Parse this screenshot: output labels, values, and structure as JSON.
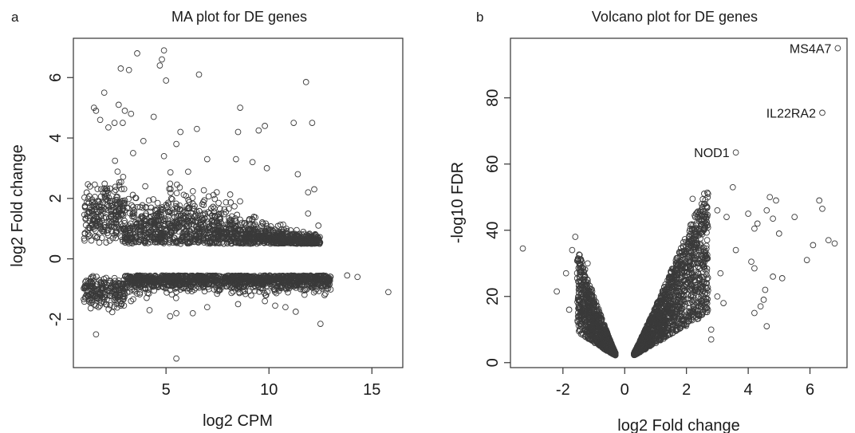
{
  "panels": [
    {
      "letter": "a",
      "title": "MA plot for DE genes",
      "xlabel": "log2 CPM",
      "ylabel": "log2 Fold change"
    },
    {
      "letter": "b",
      "title": "Volcano plot for DE genes",
      "xlabel": "log2 Fold change",
      "ylabel": "-log10 FDR"
    }
  ],
  "chart_data": [
    {
      "type": "scatter",
      "title": "MA plot for DE genes",
      "xlabel": "log2 CPM",
      "ylabel": "log2 Fold change",
      "xlim": [
        0.5,
        16.5
      ],
      "ylim": [
        -3.6,
        7.3
      ],
      "xticks": [
        5,
        10,
        15
      ],
      "yticks": [
        -2,
        0,
        2,
        4,
        6
      ],
      "grid": false,
      "marker": "open-circle",
      "outliers": [
        {
          "x": 4.9,
          "y": 6.9
        },
        {
          "x": 4.8,
          "y": 6.6
        },
        {
          "x": 4.7,
          "y": 6.4
        },
        {
          "x": 3.6,
          "y": 6.8
        },
        {
          "x": 2.8,
          "y": 6.3
        },
        {
          "x": 3.2,
          "y": 6.25
        },
        {
          "x": 5.0,
          "y": 5.9
        },
        {
          "x": 6.6,
          "y": 6.1
        },
        {
          "x": 11.8,
          "y": 5.85
        },
        {
          "x": 2.0,
          "y": 5.5
        },
        {
          "x": 1.6,
          "y": 4.9
        },
        {
          "x": 1.8,
          "y": 4.6
        },
        {
          "x": 2.2,
          "y": 4.35
        },
        {
          "x": 2.5,
          "y": 4.5
        },
        {
          "x": 2.7,
          "y": 5.1
        },
        {
          "x": 3.0,
          "y": 4.9
        },
        {
          "x": 3.3,
          "y": 4.8
        },
        {
          "x": 1.5,
          "y": 5.0
        },
        {
          "x": 2.9,
          "y": 4.5
        },
        {
          "x": 4.4,
          "y": 4.7
        },
        {
          "x": 5.7,
          "y": 4.2
        },
        {
          "x": 6.5,
          "y": 4.3
        },
        {
          "x": 8.6,
          "y": 5.0
        },
        {
          "x": 8.5,
          "y": 4.2
        },
        {
          "x": 9.5,
          "y": 4.25
        },
        {
          "x": 9.8,
          "y": 4.4
        },
        {
          "x": 11.2,
          "y": 4.5
        },
        {
          "x": 12.1,
          "y": 4.5
        },
        {
          "x": 3.4,
          "y": 3.5
        },
        {
          "x": 3.9,
          "y": 3.9
        },
        {
          "x": 4.9,
          "y": 3.4
        },
        {
          "x": 5.5,
          "y": 3.8
        },
        {
          "x": 7.0,
          "y": 3.3
        },
        {
          "x": 8.4,
          "y": 3.3
        },
        {
          "x": 9.2,
          "y": 3.2
        },
        {
          "x": 9.9,
          "y": 3.0
        },
        {
          "x": 11.4,
          "y": 2.8
        },
        {
          "x": 11.9,
          "y": 2.2
        },
        {
          "x": 12.2,
          "y": 2.3
        },
        {
          "x": 11.9,
          "y": 1.5
        },
        {
          "x": 12.4,
          "y": 1.1
        },
        {
          "x": 12.1,
          "y": 0.5
        },
        {
          "x": 11.5,
          "y": 0.7
        },
        {
          "x": 14.3,
          "y": -0.6
        },
        {
          "x": 13.8,
          "y": -0.55
        },
        {
          "x": 15.8,
          "y": -1.1
        },
        {
          "x": 12.6,
          "y": -0.9
        },
        {
          "x": 12.7,
          "y": -1.2
        },
        {
          "x": 12.3,
          "y": -1.0
        },
        {
          "x": 11.3,
          "y": -1.75
        },
        {
          "x": 12.5,
          "y": -2.15
        },
        {
          "x": 10.3,
          "y": -1.55
        },
        {
          "x": 9.8,
          "y": -1.4
        },
        {
          "x": 8.5,
          "y": -1.5
        },
        {
          "x": 7.0,
          "y": -1.6
        },
        {
          "x": 6.3,
          "y": -1.8
        },
        {
          "x": 5.5,
          "y": -1.8
        },
        {
          "x": 5.2,
          "y": -1.9
        },
        {
          "x": 4.2,
          "y": -1.7
        },
        {
          "x": 3.3,
          "y": -1.4
        },
        {
          "x": 1.6,
          "y": -2.5
        },
        {
          "x": 5.5,
          "y": -3.3
        },
        {
          "x": 2.8,
          "y": -1.55
        },
        {
          "x": 10.8,
          "y": -1.6
        }
      ],
      "bulk_description": {
        "up_band": {
          "center_y": 0.6,
          "x_range": [
            1.0,
            12.0
          ]
        },
        "down_band": {
          "center_y": -0.6,
          "x_range": [
            1.0,
            13.0
          ]
        }
      }
    },
    {
      "type": "scatter",
      "title": "Volcano plot for DE genes",
      "xlabel": "log2 Fold change",
      "ylabel": "-log10 FDR",
      "xlim": [
        -3.7,
        7.2
      ],
      "ylim": [
        -1.5,
        98
      ],
      "xticks": [
        -2,
        0,
        2,
        4,
        6
      ],
      "yticks": [
        0,
        20,
        40,
        60,
        80
      ],
      "grid": false,
      "marker": "open-circle",
      "annotations": [
        {
          "text": "MS4A7",
          "x": 6.9,
          "y": 95
        },
        {
          "text": "IL22RA2",
          "x": 6.4,
          "y": 75.5
        },
        {
          "text": "NOD1",
          "x": 3.6,
          "y": 63.5
        }
      ],
      "outliers": [
        {
          "x": 6.9,
          "y": 95
        },
        {
          "x": 6.4,
          "y": 75.5
        },
        {
          "x": 3.6,
          "y": 63.5
        },
        {
          "x": -3.3,
          "y": 34.5
        },
        {
          "x": -2.2,
          "y": 21.5
        },
        {
          "x": -1.9,
          "y": 27
        },
        {
          "x": -1.6,
          "y": 38
        },
        {
          "x": -1.7,
          "y": 34
        },
        {
          "x": -1.8,
          "y": 16
        },
        {
          "x": -1.5,
          "y": 20
        },
        {
          "x": -1.2,
          "y": 30
        },
        {
          "x": 2.2,
          "y": 49.5
        },
        {
          "x": 2.7,
          "y": 51
        },
        {
          "x": 3.5,
          "y": 53
        },
        {
          "x": 2.6,
          "y": 48
        },
        {
          "x": 4.0,
          "y": 45
        },
        {
          "x": 4.3,
          "y": 42
        },
        {
          "x": 4.2,
          "y": 40.5
        },
        {
          "x": 4.6,
          "y": 46
        },
        {
          "x": 4.7,
          "y": 50
        },
        {
          "x": 4.9,
          "y": 49
        },
        {
          "x": 4.8,
          "y": 43.5
        },
        {
          "x": 5.5,
          "y": 44
        },
        {
          "x": 5.0,
          "y": 39
        },
        {
          "x": 6.1,
          "y": 35.5
        },
        {
          "x": 6.3,
          "y": 49
        },
        {
          "x": 6.4,
          "y": 46.5
        },
        {
          "x": 6.6,
          "y": 37
        },
        {
          "x": 6.8,
          "y": 36
        },
        {
          "x": 5.9,
          "y": 31
        },
        {
          "x": 4.1,
          "y": 30.5
        },
        {
          "x": 4.2,
          "y": 28.5
        },
        {
          "x": 4.8,
          "y": 26
        },
        {
          "x": 5.1,
          "y": 25.5
        },
        {
          "x": 4.4,
          "y": 17
        },
        {
          "x": 4.5,
          "y": 19
        },
        {
          "x": 4.55,
          "y": 22
        },
        {
          "x": 4.6,
          "y": 11
        },
        {
          "x": 4.2,
          "y": 15
        },
        {
          "x": 3.0,
          "y": 46
        },
        {
          "x": 3.3,
          "y": 44
        },
        {
          "x": 3.6,
          "y": 34
        },
        {
          "x": 3.1,
          "y": 27
        },
        {
          "x": 3.0,
          "y": 20
        },
        {
          "x": 3.2,
          "y": 18
        },
        {
          "x": 2.8,
          "y": 10
        },
        {
          "x": 2.8,
          "y": 7
        }
      ],
      "bulk_description": {
        "left_arm": {
          "x_range": [
            -1.6,
            -0.3
          ],
          "y_range": [
            2,
            30
          ]
        },
        "right_arm": {
          "x_range": [
            0.3,
            3.0
          ],
          "y_range": [
            2,
            45
          ]
        }
      }
    }
  ]
}
